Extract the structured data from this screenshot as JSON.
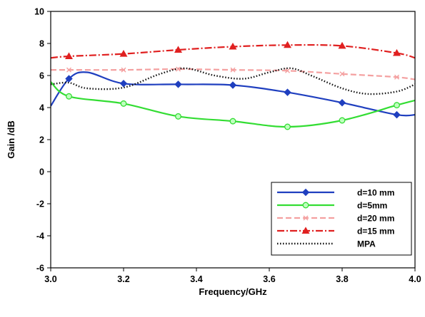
{
  "chart_data": {
    "type": "line",
    "xlabel": "Frequency/GHz",
    "ylabel": "Gain /dB",
    "xlim": [
      3.0,
      4.0
    ],
    "ylim": [
      -6,
      10
    ],
    "xticks": [
      "3.0",
      "3.2",
      "3.4",
      "3.6",
      "3.8",
      "4.0"
    ],
    "yticks": [
      "-6",
      "-4",
      "-2",
      "0",
      "2",
      "4",
      "6",
      "8",
      "10"
    ],
    "grid": false,
    "legend_position": "bottom-right",
    "series": [
      {
        "name": "d=10 mm",
        "color": "#1f3fbf",
        "dash": "",
        "marker": "diamond",
        "marker_fill": "#1f3fbf",
        "x": [
          3.0,
          3.05,
          3.1,
          3.2,
          3.35,
          3.5,
          3.65,
          3.8,
          3.95,
          4.0
        ],
        "y": [
          4.1,
          5.8,
          6.2,
          5.5,
          5.45,
          5.4,
          4.95,
          4.3,
          3.55,
          3.55
        ],
        "marker_x": [
          3.05,
          3.2,
          3.35,
          3.5,
          3.65,
          3.8,
          3.95
        ],
        "marker_y": [
          5.8,
          5.5,
          5.45,
          5.4,
          4.95,
          4.3,
          3.55
        ]
      },
      {
        "name": "d=5mm",
        "color": "#33dd33",
        "dash": "",
        "marker": "circle",
        "marker_fill": "#bfffbf",
        "x": [
          3.0,
          3.05,
          3.2,
          3.35,
          3.5,
          3.65,
          3.8,
          3.95,
          4.0
        ],
        "y": [
          5.6,
          4.7,
          4.25,
          3.45,
          3.15,
          2.8,
          3.2,
          4.15,
          4.45
        ],
        "marker_x": [
          3.05,
          3.2,
          3.35,
          3.5,
          3.65,
          3.8,
          3.95
        ],
        "marker_y": [
          4.7,
          4.25,
          3.45,
          3.15,
          2.8,
          3.2,
          4.15
        ]
      },
      {
        "name": "d=20 mm",
        "color": "#f4a0a0",
        "dash": "8,4",
        "marker": "x",
        "marker_fill": "#f4a0a0",
        "x": [
          3.0,
          3.05,
          3.2,
          3.35,
          3.5,
          3.65,
          3.8,
          3.95,
          4.0
        ],
        "y": [
          6.35,
          6.35,
          6.35,
          6.4,
          6.35,
          6.3,
          6.1,
          5.9,
          5.75
        ],
        "marker_x": [
          3.05,
          3.2,
          3.35,
          3.5,
          3.65,
          3.8,
          3.95
        ],
        "marker_y": [
          6.35,
          6.35,
          6.4,
          6.35,
          6.3,
          6.1,
          5.9
        ]
      },
      {
        "name": "d=15 mm",
        "color": "#e02020",
        "dash": "10,3,2,3",
        "marker": "triangle",
        "marker_fill": "#e02020",
        "x": [
          3.0,
          3.05,
          3.2,
          3.35,
          3.5,
          3.65,
          3.8,
          3.95,
          4.0
        ],
        "y": [
          7.1,
          7.2,
          7.35,
          7.6,
          7.8,
          7.9,
          7.85,
          7.4,
          7.1
        ],
        "marker_x": [
          3.05,
          3.2,
          3.35,
          3.5,
          3.65,
          3.8,
          3.95
        ],
        "marker_y": [
          7.2,
          7.35,
          7.6,
          7.8,
          7.9,
          7.85,
          7.4
        ]
      },
      {
        "name": "MPA",
        "color": "#111111",
        "dash": "1.5,2.5",
        "marker": "none",
        "marker_fill": "#111111",
        "x": [
          3.0,
          3.05,
          3.1,
          3.2,
          3.3,
          3.37,
          3.45,
          3.53,
          3.6,
          3.66,
          3.72,
          3.8,
          3.87,
          3.95,
          4.0
        ],
        "y": [
          5.45,
          5.55,
          5.2,
          5.25,
          6.1,
          6.45,
          6.0,
          5.8,
          6.2,
          6.45,
          5.95,
          5.2,
          4.85,
          5.0,
          5.45
        ],
        "marker_x": [],
        "marker_y": []
      }
    ]
  }
}
